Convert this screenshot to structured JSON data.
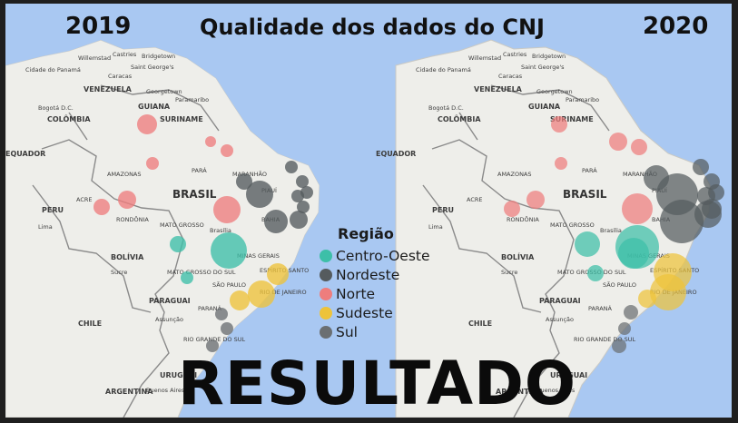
{
  "title": "Qualidade dos dados do CNJ",
  "years": {
    "left": "2019",
    "right": "2020"
  },
  "banner": "RESULTADO",
  "legend": {
    "title": "Região",
    "items": [
      {
        "label": "Centro-Oeste",
        "color": "#3dbfa8"
      },
      {
        "label": "Nordeste",
        "color": "#555b5e"
      },
      {
        "label": "Norte",
        "color": "#ee7d7d"
      },
      {
        "label": "Sudeste",
        "color": "#eec33a"
      },
      {
        "label": "Sul",
        "color": "#6b6f72"
      }
    ]
  },
  "maps": {
    "left": {
      "labels": {
        "country_brazil": "BRASIL",
        "venezuela": "VENEZUELA",
        "colombia": "COLÔMBIA",
        "equador": "EQUADOR",
        "peru": "PERU",
        "bolivia": "BOLÍVIA",
        "paraguai": "PARAGUAI",
        "chile": "CHILE",
        "argentina": "ARGENTINA",
        "uruguai": "URUGUAI",
        "suriname": "SURINAME",
        "guiana": "GUIANA",
        "amazonas": "AMAZONAS",
        "para": "PARÁ",
        "mato_grosso": "MATO GROSSO",
        "rondonia": "RONDÔNIA",
        "acre": "ACRE",
        "maranhao": "MARANHÃO",
        "piaui": "PIAUÍ",
        "bahia": "BAHIA",
        "minas": "MINAS GERAIS",
        "sao_paulo": "SÃO PAULO",
        "parana": "PARANÁ",
        "espirito": "ESPÍRITO SANTO",
        "rio": "RIO DE JANEIRO",
        "brasilia": "Brasília",
        "rio_grande": "RIO GRANDE DO SUL",
        "mato_sul": "MATO GROSSO DO SUL",
        "caracas": "Caracas",
        "bogota": "Bogotá D.C.",
        "lima": "Lima",
        "sucre": "Sucre",
        "assuncao": "Assunção",
        "paramaribo": "Paramaribo",
        "georgetown": "Georgetown",
        "cidade_panama": "Cidade do Panamá",
        "castries": "Castries",
        "bridgetown": "Bridgetown",
        "willemstad": "Willemstad",
        "st_george": "Saint George's",
        "buenos_aires": "Buenos Aires"
      }
    },
    "right": {
      "labels": {
        "country_brazil": "BRASIL",
        "venezuela": "VENEZUELA",
        "colombia": "COLÔMBIA",
        "equador": "EQUADOR",
        "peru": "PERU",
        "bolivia": "BOLÍVIA",
        "paraguai": "PARAGUAI",
        "chile": "CHILE",
        "argentina": "ARGENTINA",
        "uruguai": "URUGUAI",
        "suriname": "SURINAME",
        "guiana": "GUIANA",
        "amazonas": "AMAZONAS",
        "para": "PARÁ",
        "mato_grosso": "MATO GROSSO",
        "rondonia": "RONDÔNIA",
        "acre": "ACRE",
        "maranhao": "MARANHÃO",
        "piaui": "PIAUÍ",
        "bahia": "BAHIA",
        "minas": "MINAS GERAIS",
        "sao_paulo": "SÃO PAULO",
        "parana": "PARANÁ",
        "espirito": "ESPÍRITO SANTO",
        "rio": "RIO DE JANEIRO",
        "brasilia": "Brasília",
        "rio_grande": "RIO GRANDE DO SUL",
        "mato_sul": "MATO GROSSO DO SUL",
        "caracas": "Caracas",
        "bogota": "Bogotá D.C.",
        "lima": "Lima",
        "sucre": "Sucre",
        "assuncao": "Assunção",
        "paramaribo": "Paramaribo",
        "georgetown": "Georgetown",
        "cidade_panama": "Cidade do Panamá",
        "castries": "Castries",
        "bridgetown": "Bridgetown",
        "willemstad": "Willemstad",
        "st_george": "Saint George's",
        "buenos_aires": "Buenos Aires"
      }
    }
  }
}
